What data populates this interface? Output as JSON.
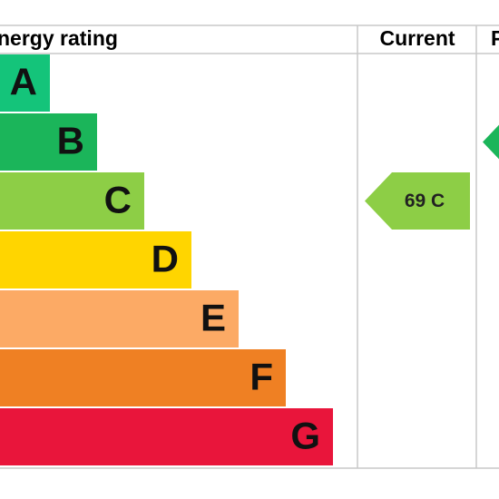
{
  "header": {
    "rating": "nergy rating",
    "current": "Current",
    "potential": "P"
  },
  "bands": [
    {
      "letter": "A",
      "color": "#14c47a"
    },
    {
      "letter": "B",
      "color": "#1bb55a"
    },
    {
      "letter": "C",
      "color": "#8dce46"
    },
    {
      "letter": "D",
      "color": "#ffd500"
    },
    {
      "letter": "E",
      "color": "#fcaa65"
    },
    {
      "letter": "F",
      "color": "#ef8023"
    },
    {
      "letter": "G",
      "color": "#e9153b"
    }
  ],
  "current": {
    "label": "69 C",
    "band": 2,
    "color": "#8dce46"
  },
  "potential": {
    "band": 1,
    "color": "#1bb55a"
  }
}
